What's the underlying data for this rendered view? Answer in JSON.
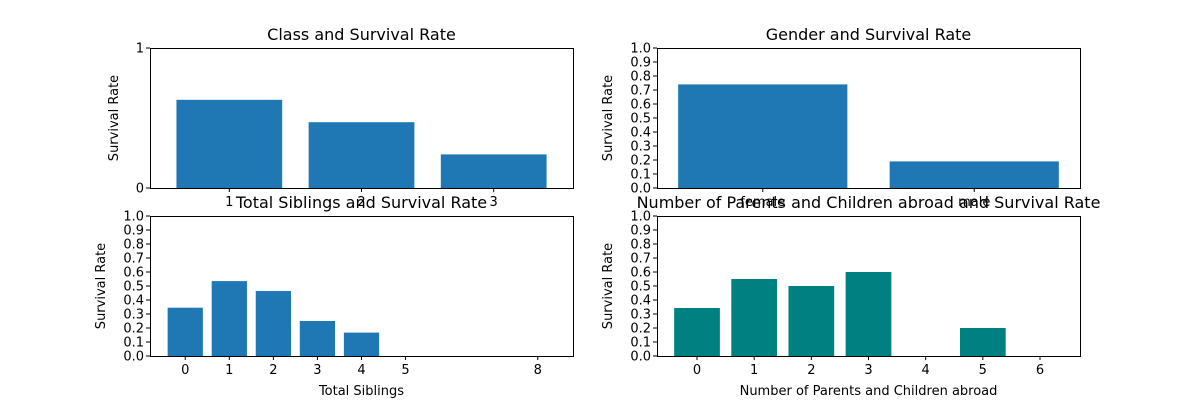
{
  "colors": {
    "default": "#1f77b4",
    "teal": "#008080"
  },
  "chart_data": [
    {
      "type": "bar",
      "title": "Class and Survival Rate",
      "xlabel": "",
      "ylabel": "Survival Rate",
      "x": [
        1,
        2,
        3
      ],
      "xticks": [
        "1",
        "2",
        "3"
      ],
      "values": [
        0.63,
        0.47,
        0.24
      ],
      "xlim": [
        0.4,
        3.6
      ],
      "ylim": [
        0,
        1
      ],
      "yticks": [
        "0",
        "1"
      ],
      "ytick_values": [
        0,
        1
      ],
      "bar_width": 0.8,
      "color": "#1f77b4",
      "grid": false
    },
    {
      "type": "bar",
      "title": "Gender and Survival Rate",
      "xlabel": "",
      "ylabel": "Survival Rate",
      "x": [
        0,
        1
      ],
      "xticks": [
        "female",
        "male"
      ],
      "values": [
        0.74,
        0.19
      ],
      "xlim": [
        -0.5,
        1.5
      ],
      "ylim": [
        0,
        1
      ],
      "yticks": [
        "0.0",
        "0.1",
        "0.2",
        "0.3",
        "0.4",
        "0.5",
        "0.6",
        "0.7",
        "0.8",
        "0.9",
        "1.0"
      ],
      "ytick_values": [
        0,
        0.1,
        0.2,
        0.3,
        0.4,
        0.5,
        0.6,
        0.7,
        0.8,
        0.9,
        1.0
      ],
      "bar_width": 0.8,
      "color": "#1f77b4",
      "grid": false
    },
    {
      "type": "bar",
      "title": "Total Siblings and Survival Rate",
      "xlabel": "Total Siblings",
      "ylabel": "Survival Rate",
      "x": [
        0,
        1,
        2,
        3,
        4,
        5,
        8
      ],
      "xticks": [
        "0",
        "1",
        "2",
        "3",
        "4",
        "5",
        "8"
      ],
      "values": [
        0.345,
        0.535,
        0.464,
        0.25,
        0.167,
        0,
        0
      ],
      "xlim": [
        -0.8,
        8.8
      ],
      "ylim": [
        0,
        1
      ],
      "yticks": [
        "0.0",
        "0.1",
        "0.2",
        "0.3",
        "0.4",
        "0.5",
        "0.6",
        "0.7",
        "0.8",
        "0.9",
        "1.0"
      ],
      "ytick_values": [
        0,
        0.1,
        0.2,
        0.3,
        0.4,
        0.5,
        0.6,
        0.7,
        0.8,
        0.9,
        1.0
      ],
      "bar_width": 0.8,
      "color": "#1f77b4",
      "grid": false
    },
    {
      "type": "bar",
      "title": "Number of Parents and Children abroad and Survival Rate",
      "xlabel": "Number of Parents and Children abroad",
      "ylabel": "Survival Rate",
      "x": [
        0,
        1,
        2,
        3,
        4,
        5,
        6
      ],
      "xticks": [
        "0",
        "1",
        "2",
        "3",
        "4",
        "5",
        "6"
      ],
      "values": [
        0.343,
        0.55,
        0.5,
        0.6,
        0,
        0.2,
        0
      ],
      "xlim": [
        -0.7,
        6.7
      ],
      "ylim": [
        0,
        1
      ],
      "yticks": [
        "0.0",
        "0.1",
        "0.2",
        "0.3",
        "0.4",
        "0.5",
        "0.6",
        "0.7",
        "0.8",
        "0.9",
        "1.0"
      ],
      "ytick_values": [
        0,
        0.1,
        0.2,
        0.3,
        0.4,
        0.5,
        0.6,
        0.7,
        0.8,
        0.9,
        1.0
      ],
      "bar_width": 0.8,
      "color": "#008080",
      "grid": false
    }
  ]
}
